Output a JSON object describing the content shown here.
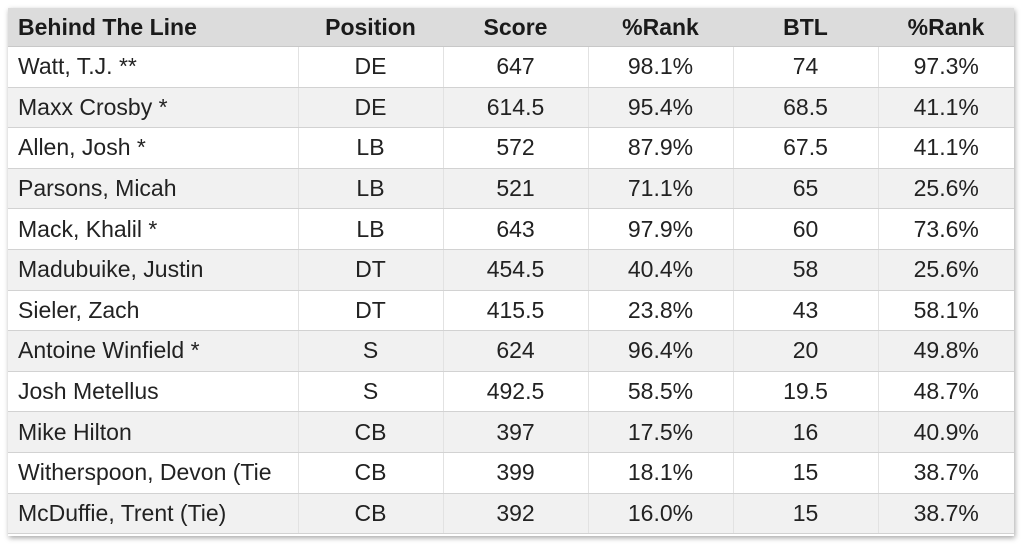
{
  "table": {
    "headers": [
      "Behind The Line",
      "Position",
      "Score",
      "%Rank",
      "BTL",
      "%Rank"
    ],
    "rows": [
      [
        "Watt, T.J. **",
        "DE",
        "647",
        "98.1%",
        "74",
        "97.3%"
      ],
      [
        "Maxx Crosby *",
        "DE",
        "614.5",
        "95.4%",
        "68.5",
        "41.1%"
      ],
      [
        "Allen, Josh *",
        "LB",
        "572",
        "87.9%",
        "67.5",
        "41.1%"
      ],
      [
        "Parsons, Micah",
        "LB",
        "521",
        "71.1%",
        "65",
        "25.6%"
      ],
      [
        "Mack, Khalil *",
        "LB",
        "643",
        "97.9%",
        "60",
        "73.6%"
      ],
      [
        "Madubuike, Justin",
        "DT",
        "454.5",
        "40.4%",
        "58",
        "25.6%"
      ],
      [
        "Sieler, Zach",
        "DT",
        "415.5",
        "23.8%",
        "43",
        "58.1%"
      ],
      [
        "Antoine Winfield *",
        "S",
        "624",
        "96.4%",
        "20",
        "49.8%"
      ],
      [
        "Josh Metellus",
        "S",
        "492.5",
        "58.5%",
        "19.5",
        "48.7%"
      ],
      [
        "Mike Hilton",
        "CB",
        "397",
        "17.5%",
        "16",
        "40.9%"
      ],
      [
        "Witherspoon, Devon (Tie",
        "CB",
        "399",
        "18.1%",
        "15",
        "38.7%"
      ],
      [
        "McDuffie, Trent (Tie)",
        "CB",
        "392",
        "16.0%",
        "15",
        "38.7%"
      ]
    ]
  }
}
